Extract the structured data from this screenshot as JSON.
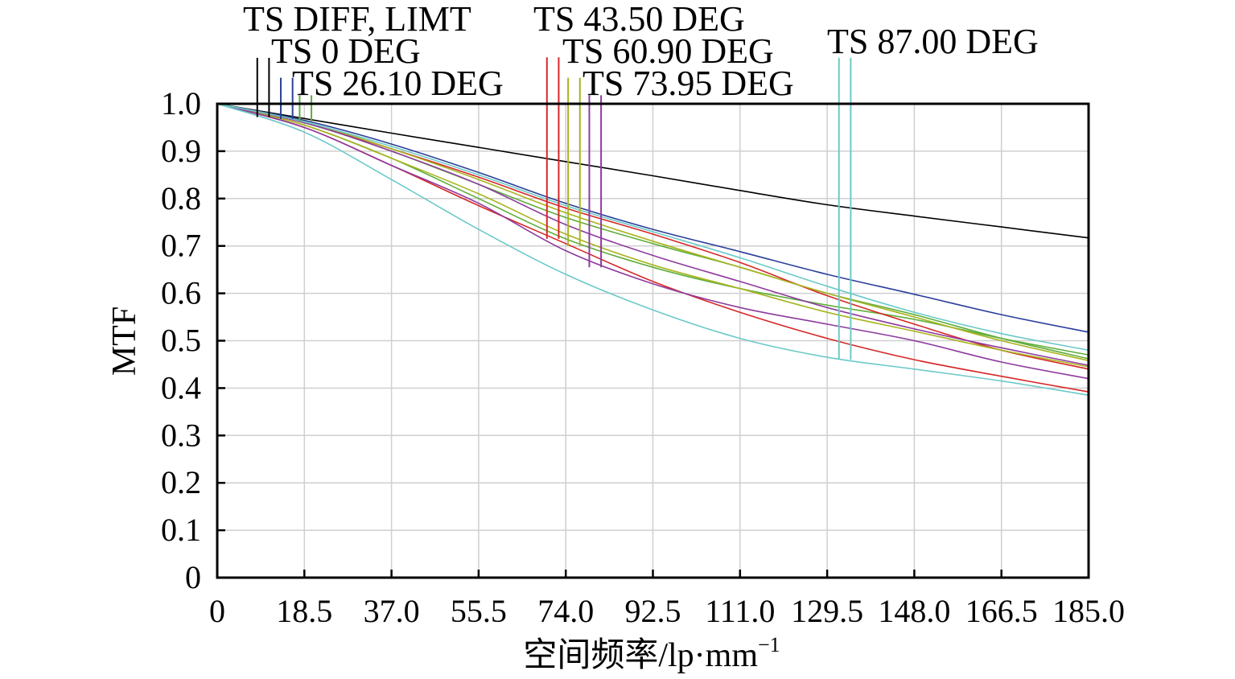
{
  "chart_data": {
    "type": "line",
    "title": "",
    "xlabel": "空间频率/lp·mm",
    "xlabel_superscript": "−1",
    "ylabel": "MTF",
    "xlim": [
      0,
      185.0
    ],
    "ylim": [
      0,
      1.0
    ],
    "x_ticks": [
      "0",
      "18.5",
      "37.0",
      "55.5",
      "74.0",
      "92.5",
      "111.0",
      "129.5",
      "148.0",
      "166.5",
      "185.0"
    ],
    "y_ticks": [
      "0",
      "0.1",
      "0.2",
      "0.3",
      "0.4",
      "0.5",
      "0.6",
      "0.7",
      "0.8",
      "0.9",
      "1.0"
    ],
    "grid": true,
    "series": [
      {
        "name": "TS DIFF, LIMT",
        "color": "#000000",
        "marker_x": [
          8.5,
          11.0
        ],
        "marker_top": 1.097,
        "marker_bottom": 0.972,
        "x": [
          0,
          18.5,
          37.0,
          55.5,
          74.0,
          92.5,
          111.0,
          129.5,
          148.0,
          166.5,
          185.0
        ],
        "y": [
          1.0,
          0.969,
          0.938,
          0.908,
          0.878,
          0.848,
          0.817,
          0.787,
          0.763,
          0.74,
          0.717
        ]
      },
      {
        "name": "TS 0 DEG",
        "color": "#2a3f9a",
        "marker_x": [
          13.5,
          16.0
        ],
        "marker_top": 1.055,
        "marker_bottom": 0.968,
        "x": [
          0,
          18.5,
          37.0,
          55.5,
          74.0,
          92.5,
          111.0,
          129.5,
          148.0,
          166.5,
          185.0
        ],
        "y": [
          1.0,
          0.965,
          0.915,
          0.855,
          0.79,
          0.735,
          0.688,
          0.64,
          0.598,
          0.555,
          0.518
        ]
      },
      {
        "name": "TS 26.10 DEG",
        "color": "#5fae3b",
        "marker_x": [
          17.5,
          20.0
        ],
        "marker_top": 1.018,
        "marker_bottom": 0.962,
        "curves": [
          {
            "x": [
              0,
              18.5,
              37.0,
              55.5,
              74.0,
              92.5,
              111.0,
              129.5,
              148.0,
              166.5,
              185.0
            ],
            "y": [
              1.0,
              0.96,
              0.9,
              0.83,
              0.76,
              0.705,
              0.655,
              0.6,
              0.555,
              0.505,
              0.462
            ]
          },
          {
            "x": [
              0,
              18.5,
              37.0,
              55.5,
              74.0,
              92.5,
              111.0,
              129.5,
              148.0,
              166.5,
              185.0
            ],
            "y": [
              1.0,
              0.955,
              0.885,
              0.8,
              0.715,
              0.655,
              0.61,
              0.575,
              0.545,
              0.505,
              0.47
            ]
          }
        ]
      },
      {
        "name": "TS 43.50 DEG",
        "color": "#d62728",
        "marker_x": [
          70.0,
          72.5
        ],
        "marker_top": 1.098,
        "marker_bottom": 0.715,
        "curves": [
          {
            "x": [
              0,
              18.5,
              37.0,
              55.5,
              74.0,
              92.5,
              111.0,
              129.5,
              148.0,
              166.5,
              185.0
            ],
            "y": [
              1.0,
              0.96,
              0.905,
              0.845,
              0.78,
              0.725,
              0.665,
              0.595,
              0.535,
              0.48,
              0.44
            ]
          },
          {
            "x": [
              0,
              18.5,
              37.0,
              55.5,
              74.0,
              92.5,
              111.0,
              129.5,
              148.0,
              166.5,
              185.0
            ],
            "y": [
              1.0,
              0.95,
              0.87,
              0.785,
              0.705,
              0.625,
              0.56,
              0.505,
              0.46,
              0.425,
              0.392
            ]
          }
        ]
      },
      {
        "name": "TS 60.90 DEG",
        "color": "#a8b41e",
        "marker_x": [
          74.5,
          77.0
        ],
        "marker_top": 1.055,
        "marker_bottom": 0.7,
        "curves": [
          {
            "x": [
              0,
              18.5,
              37.0,
              55.5,
              74.0,
              92.5,
              111.0,
              129.5,
              148.0,
              166.5,
              185.0
            ],
            "y": [
              1.0,
              0.962,
              0.905,
              0.84,
              0.77,
              0.71,
              0.655,
              0.6,
              0.55,
              0.5,
              0.458
            ]
          },
          {
            "x": [
              0,
              18.5,
              37.0,
              55.5,
              74.0,
              92.5,
              111.0,
              129.5,
              148.0,
              166.5,
              185.0
            ],
            "y": [
              1.0,
              0.955,
              0.885,
              0.81,
              0.725,
              0.66,
              0.61,
              0.56,
              0.52,
              0.48,
              0.445
            ]
          }
        ]
      },
      {
        "name": "TS 73.95 DEG",
        "color": "#8e3a9e",
        "marker_x": [
          79.0,
          81.5
        ],
        "marker_top": 1.018,
        "marker_bottom": 0.655,
        "curves": [
          {
            "x": [
              0,
              18.5,
              37.0,
              55.5,
              74.0,
              92.5,
              111.0,
              129.5,
              148.0,
              166.5,
              185.0
            ],
            "y": [
              1.0,
              0.96,
              0.9,
              0.83,
              0.745,
              0.68,
              0.625,
              0.57,
              0.525,
              0.485,
              0.448
            ]
          },
          {
            "x": [
              0,
              18.5,
              37.0,
              55.5,
              74.0,
              92.5,
              111.0,
              129.5,
              148.0,
              166.5,
              185.0
            ],
            "y": [
              1.0,
              0.95,
              0.87,
              0.79,
              0.69,
              0.62,
              0.57,
              0.535,
              0.5,
              0.455,
              0.42
            ]
          }
        ]
      },
      {
        "name": "TS 87.00 DEG",
        "color": "#6cc9c9",
        "marker_x": [
          132.0,
          134.5
        ],
        "marker_top": 1.097,
        "marker_bottom": 0.46,
        "curves": [
          {
            "x": [
              0,
              18.5,
              37.0,
              55.5,
              74.0,
              92.5,
              111.0,
              129.5,
              148.0,
              166.5,
              185.0
            ],
            "y": [
              1.0,
              0.962,
              0.91,
              0.85,
              0.785,
              0.73,
              0.675,
              0.615,
              0.56,
              0.515,
              0.48
            ]
          },
          {
            "x": [
              0,
              18.5,
              37.0,
              55.5,
              74.0,
              92.5,
              111.0,
              129.5,
              148.0,
              166.5,
              185.0
            ],
            "y": [
              1.0,
              0.94,
              0.84,
              0.735,
              0.64,
              0.565,
              0.505,
              0.465,
              0.44,
              0.415,
              0.385
            ]
          }
        ]
      }
    ]
  }
}
